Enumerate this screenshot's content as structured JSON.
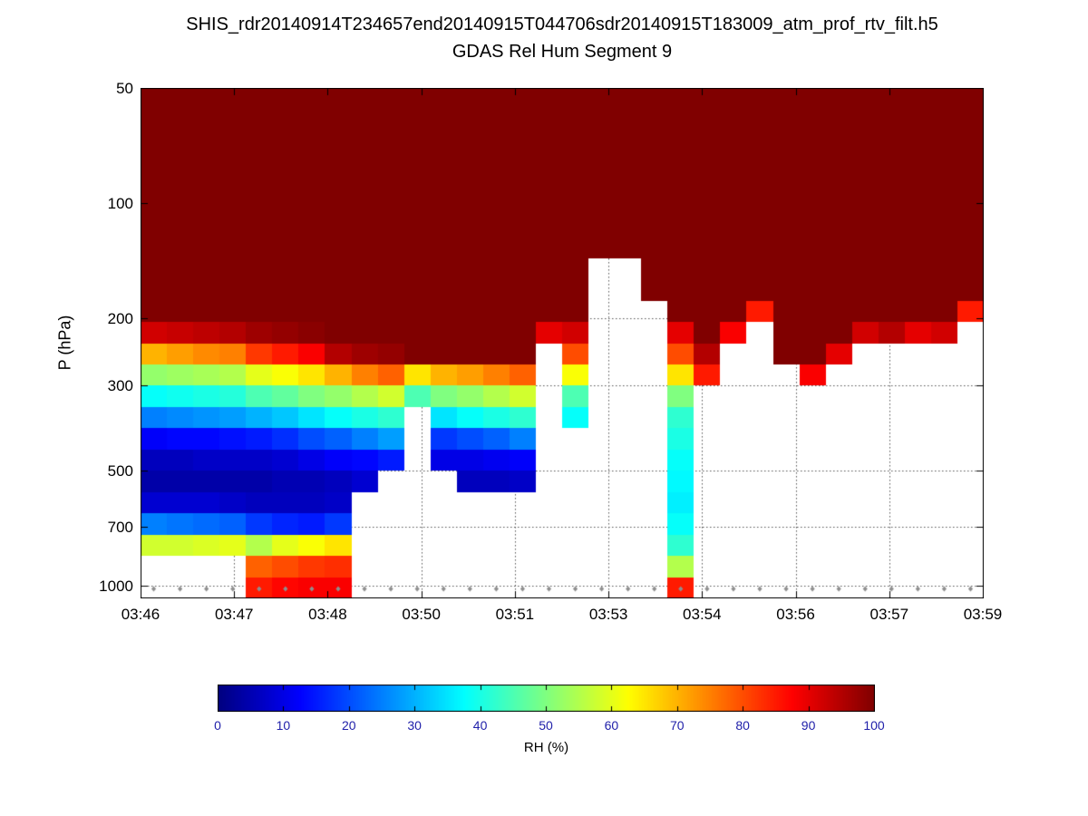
{
  "figure": {
    "title_line1": "SHIS_rdr20140914T234657end20140915T044706sdr20140915T183009_atm_prof_rtv_filt.h5",
    "title_line2": "GDAS Rel Hum Segment 9"
  },
  "axes": {
    "ylabel": "P (hPa)",
    "yticks": [
      50,
      100,
      200,
      300,
      500,
      700,
      1000
    ],
    "ylim": [
      50,
      1080
    ],
    "y_scale": "log",
    "grid": true,
    "xtick_labels": [
      "03:46",
      "03:47",
      "03:48",
      "03:50",
      "03:51",
      "03:53",
      "03:54",
      "03:56",
      "03:57",
      "03:59"
    ]
  },
  "colorbar": {
    "label": "RH (%)",
    "ticks": [
      0,
      10,
      20,
      30,
      40,
      50,
      60,
      70,
      80,
      90,
      100
    ],
    "min": 0,
    "max": 100,
    "colormap": "jet",
    "tick_label_color": "#2121aa"
  },
  "chart_data": {
    "type": "heatmap",
    "title": "GDAS Rel Hum Segment 9",
    "suptitle": "SHIS_rdr20140914T234657end20140915T044706sdr20140915T183009_atm_prof_rtv_filt.h5",
    "ylabel": "P (hPa)",
    "value_label": "RH (%)",
    "value_range": [
      0,
      100
    ],
    "colormap": "jet",
    "missing_value": null,
    "x_axis_type": "time",
    "x_tick_labels": [
      "03:46",
      "03:47",
      "03:48",
      "03:50",
      "03:51",
      "03:53",
      "03:54",
      "03:56",
      "03:57",
      "03:59"
    ],
    "pressure_levels_hPa": [
      50,
      57,
      65,
      74,
      84,
      96,
      109,
      124,
      141,
      161,
      183,
      208,
      237,
      270,
      307,
      350,
      398,
      453,
      515,
      587,
      668,
      760,
      865,
      985
    ],
    "orientation": "columns",
    "values": [
      [
        100,
        100,
        100,
        100,
        100,
        100,
        100,
        100,
        100,
        100,
        100,
        92,
        70,
        52,
        38,
        25,
        12,
        6,
        4,
        8,
        25,
        58,
        null,
        null
      ],
      [
        100,
        100,
        100,
        100,
        100,
        100,
        100,
        100,
        100,
        100,
        100,
        93,
        72,
        53,
        39,
        26,
        13,
        6,
        4,
        8,
        24,
        58,
        null,
        null
      ],
      [
        100,
        100,
        100,
        100,
        100,
        100,
        100,
        100,
        100,
        100,
        100,
        94,
        74,
        54,
        40,
        27,
        13,
        7,
        4,
        8,
        23,
        59,
        null,
        null
      ],
      [
        100,
        100,
        100,
        100,
        100,
        100,
        100,
        100,
        100,
        100,
        100,
        95,
        75,
        55,
        41,
        28,
        14,
        7,
        4,
        7,
        22,
        60,
        null,
        null
      ],
      [
        100,
        100,
        100,
        100,
        100,
        100,
        100,
        100,
        100,
        100,
        100,
        97,
        82,
        60,
        45,
        30,
        15,
        7,
        4,
        6,
        18,
        55,
        78,
        85
      ],
      [
        100,
        100,
        100,
        100,
        100,
        100,
        100,
        100,
        100,
        100,
        100,
        98,
        85,
        62,
        47,
        32,
        17,
        8,
        5,
        6,
        16,
        60,
        80,
        87
      ],
      [
        100,
        100,
        100,
        100,
        100,
        100,
        100,
        100,
        100,
        100,
        100,
        99,
        88,
        65,
        50,
        35,
        20,
        10,
        5,
        6,
        15,
        62,
        82,
        88
      ],
      [
        100,
        100,
        100,
        100,
        100,
        100,
        100,
        100,
        100,
        100,
        100,
        100,
        95,
        70,
        52,
        38,
        22,
        12,
        6,
        7,
        18,
        65,
        83,
        88
      ],
      [
        100,
        100,
        100,
        100,
        100,
        100,
        100,
        100,
        100,
        100,
        100,
        100,
        97,
        75,
        55,
        40,
        25,
        13,
        8,
        null,
        null,
        null,
        null,
        null
      ],
      [
        100,
        100,
        100,
        100,
        100,
        100,
        100,
        100,
        100,
        100,
        100,
        100,
        98,
        78,
        58,
        42,
        28,
        15,
        null,
        null,
        null,
        null,
        null,
        null
      ],
      [
        100,
        100,
        100,
        100,
        100,
        100,
        100,
        100,
        100,
        100,
        100,
        100,
        100,
        65,
        45,
        null,
        null,
        null,
        null,
        null,
        null,
        null,
        null,
        null
      ],
      [
        100,
        100,
        100,
        100,
        100,
        100,
        100,
        100,
        100,
        100,
        100,
        100,
        100,
        70,
        50,
        35,
        18,
        10,
        null,
        null,
        null,
        null,
        null,
        null
      ],
      [
        100,
        100,
        100,
        100,
        100,
        100,
        100,
        100,
        100,
        100,
        100,
        100,
        100,
        72,
        52,
        38,
        20,
        10,
        6,
        null,
        null,
        null,
        null,
        null
      ],
      [
        100,
        100,
        100,
        100,
        100,
        100,
        100,
        100,
        100,
        100,
        100,
        100,
        100,
        75,
        55,
        40,
        22,
        11,
        6,
        null,
        null,
        null,
        null,
        null
      ],
      [
        100,
        100,
        100,
        100,
        100,
        100,
        100,
        100,
        100,
        100,
        100,
        100,
        100,
        78,
        58,
        42,
        25,
        12,
        7,
        null,
        null,
        null,
        null,
        null
      ],
      [
        100,
        100,
        100,
        100,
        100,
        100,
        100,
        100,
        100,
        100,
        100,
        90,
        null,
        null,
        null,
        null,
        null,
        null,
        null,
        null,
        null,
        null,
        null,
        null
      ],
      [
        100,
        100,
        100,
        100,
        100,
        100,
        100,
        100,
        100,
        100,
        100,
        92,
        80,
        62,
        45,
        38,
        null,
        null,
        null,
        null,
        null,
        null,
        null,
        null
      ],
      [
        100,
        100,
        100,
        100,
        100,
        100,
        100,
        100,
        null,
        null,
        null,
        null,
        null,
        null,
        null,
        null,
        null,
        null,
        null,
        null,
        null,
        null,
        null,
        null
      ],
      [
        100,
        100,
        100,
        100,
        100,
        100,
        100,
        100,
        null,
        null,
        null,
        null,
        null,
        null,
        null,
        null,
        null,
        null,
        null,
        null,
        null,
        null,
        null,
        null
      ],
      [
        100,
        100,
        100,
        100,
        100,
        100,
        100,
        100,
        100,
        100,
        null,
        null,
        null,
        null,
        null,
        null,
        null,
        null,
        null,
        null,
        null,
        null,
        null,
        null
      ],
      [
        100,
        100,
        100,
        100,
        100,
        100,
        100,
        100,
        100,
        100,
        100,
        90,
        80,
        65,
        50,
        42,
        40,
        38,
        37,
        36,
        38,
        42,
        55,
        85
      ],
      [
        100,
        100,
        100,
        100,
        100,
        100,
        100,
        100,
        100,
        100,
        100,
        100,
        95,
        85,
        null,
        null,
        null,
        null,
        null,
        null,
        null,
        null,
        null,
        null
      ],
      [
        100,
        100,
        100,
        100,
        100,
        100,
        100,
        100,
        100,
        100,
        100,
        88,
        null,
        null,
        null,
        null,
        null,
        null,
        null,
        null,
        null,
        null,
        null,
        null
      ],
      [
        100,
        100,
        100,
        100,
        100,
        100,
        100,
        100,
        100,
        100,
        85,
        null,
        null,
        null,
        null,
        null,
        null,
        null,
        null,
        null,
        null,
        null,
        null,
        null
      ],
      [
        100,
        100,
        100,
        100,
        100,
        100,
        100,
        100,
        100,
        100,
        100,
        100,
        100,
        null,
        null,
        null,
        null,
        null,
        null,
        null,
        null,
        null,
        null,
        null
      ],
      [
        100,
        100,
        100,
        100,
        100,
        100,
        100,
        100,
        100,
        100,
        100,
        100,
        100,
        88,
        null,
        null,
        null,
        null,
        null,
        null,
        null,
        null,
        null,
        null
      ],
      [
        100,
        100,
        100,
        100,
        100,
        100,
        100,
        100,
        100,
        100,
        100,
        100,
        90,
        null,
        null,
        null,
        null,
        null,
        null,
        null,
        null,
        null,
        null,
        null
      ],
      [
        100,
        100,
        100,
        100,
        100,
        100,
        100,
        100,
        100,
        100,
        100,
        92,
        null,
        null,
        null,
        null,
        null,
        null,
        null,
        null,
        null,
        null,
        null,
        null
      ],
      [
        100,
        100,
        100,
        100,
        100,
        100,
        100,
        100,
        100,
        100,
        100,
        95,
        null,
        null,
        null,
        null,
        null,
        null,
        null,
        null,
        null,
        null,
        null,
        null
      ],
      [
        100,
        100,
        100,
        100,
        100,
        100,
        100,
        100,
        100,
        100,
        100,
        90,
        null,
        null,
        null,
        null,
        null,
        null,
        null,
        null,
        null,
        null,
        null,
        null
      ],
      [
        100,
        100,
        100,
        100,
        100,
        100,
        100,
        100,
        100,
        100,
        100,
        92,
        null,
        null,
        null,
        null,
        null,
        null,
        null,
        null,
        null,
        null,
        null,
        null
      ],
      [
        100,
        100,
        100,
        100,
        100,
        100,
        100,
        100,
        100,
        100,
        85,
        null,
        null,
        null,
        null,
        null,
        null,
        null,
        null,
        null,
        null,
        null,
        null,
        null
      ]
    ],
    "surface_marker_pressure_hPa": 1020,
    "surface_marker_color": "#8f8f8f"
  }
}
